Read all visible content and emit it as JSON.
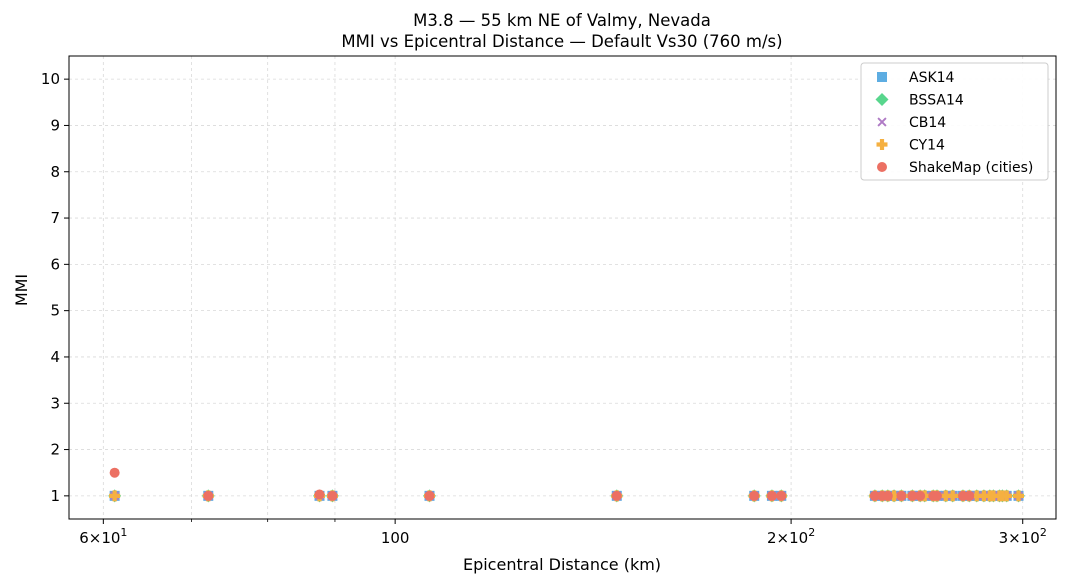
{
  "chart_data": {
    "type": "scatter",
    "title": "M3.8 — 55 km NE of Valmy, Nevada",
    "subtitle": "MMI vs Epicentral Distance — Default Vs30 (760 m/s)",
    "xlabel": "Epicentral Distance (km)",
    "ylabel": "MMI",
    "xscale": "log",
    "xlim": [
      56.5,
      318
    ],
    "ylim": [
      0.5,
      10.5
    ],
    "yticks": [
      1,
      2,
      3,
      4,
      5,
      6,
      7,
      8,
      9,
      10
    ],
    "ytick_labels": [
      "1",
      "2",
      "3",
      "4",
      "5",
      "6",
      "7",
      "8",
      "9",
      "10"
    ],
    "xticks_major": [
      {
        "value": 60,
        "base": "6",
        "mult": "×",
        "pow": "10",
        "exp": "1"
      },
      {
        "value": 100,
        "label": "100"
      },
      {
        "value": 200,
        "base": "2",
        "mult": "×",
        "pow": "10",
        "exp": "2"
      },
      {
        "value": 300,
        "base": "3",
        "mult": "×",
        "pow": "10",
        "exp": "2"
      }
    ],
    "xticks_minor": [
      70,
      80,
      90
    ],
    "xgrid_lines": [
      60,
      70,
      80,
      90,
      100,
      200,
      300
    ],
    "grid": true,
    "legend_position": "top-right",
    "series": [
      {
        "name": "ASK14",
        "marker": "square",
        "color": "#5dade2",
        "x": [
          61.2,
          72.1,
          87.6,
          89.6,
          106.2,
          147.4,
          187.5,
          193.4,
          196.6,
          231.6,
          234.6,
          236.9,
          239.5,
          242.6,
          247.3,
          250.7,
          252.7,
          256.5,
          258.2,
          262.2,
          265.4,
          270.2,
          273.2,
          276.8,
          280.3,
          283.2,
          285.0,
          288.0,
          289.5,
          291.7,
          297.8
        ],
        "y": [
          1,
          1,
          1,
          1,
          1,
          1,
          1,
          1,
          1,
          1,
          1,
          1,
          1,
          1,
          1,
          1,
          1,
          1,
          1,
          1,
          1,
          1,
          1,
          1,
          1,
          1,
          1,
          1,
          1,
          1,
          1
        ]
      },
      {
        "name": "BSSA14",
        "marker": "diamond",
        "color": "#58d68d",
        "x": [
          61.2,
          72.1,
          87.6,
          89.6,
          106.2,
          147.4,
          187.5,
          193.4,
          196.6,
          231.6,
          234.6,
          236.9,
          239.5,
          242.6,
          247.3,
          250.7,
          252.7,
          256.5,
          258.2,
          262.2,
          265.4,
          270.2,
          273.2,
          276.8,
          280.3,
          283.2,
          285.0,
          288.0,
          289.5,
          291.7,
          297.8
        ],
        "y": [
          1,
          1,
          1,
          1,
          1,
          1,
          1,
          1,
          1,
          1,
          1,
          1,
          1,
          1,
          1,
          1,
          1,
          1,
          1,
          1,
          1,
          1,
          1,
          1,
          1,
          1,
          1,
          1,
          1,
          1,
          1
        ]
      },
      {
        "name": "CB14",
        "marker": "x",
        "color": "#af7ac5",
        "x": [
          61.2,
          72.1,
          87.6,
          89.6,
          106.2,
          147.4,
          187.5,
          193.4,
          196.6,
          231.6,
          234.6,
          236.9,
          239.5,
          242.6,
          247.3,
          250.7,
          252.7,
          256.5,
          258.2,
          262.2,
          265.4,
          270.2,
          273.2,
          276.8,
          280.3,
          283.2,
          285.0,
          288.0,
          289.5,
          291.7,
          297.8
        ],
        "y": [
          1,
          1,
          1,
          1,
          1,
          1,
          1,
          1,
          1,
          1,
          1,
          1,
          1,
          1,
          1,
          1,
          1,
          1,
          1,
          1,
          1,
          1,
          1,
          1,
          1,
          1,
          1,
          1,
          1,
          1,
          1
        ]
      },
      {
        "name": "CY14",
        "marker": "plus",
        "color": "#f5b041",
        "x": [
          61.2,
          72.1,
          87.6,
          89.6,
          106.2,
          147.4,
          187.5,
          193.4,
          196.6,
          231.6,
          234.6,
          236.9,
          239.5,
          242.6,
          247.3,
          250.7,
          252.7,
          256.5,
          258.2,
          262.2,
          265.4,
          270.2,
          273.2,
          276.8,
          280.3,
          283.2,
          285.0,
          288.0,
          289.5,
          291.7,
          297.8
        ],
        "y": [
          1,
          1,
          1,
          1,
          1,
          1,
          1,
          1,
          1,
          1,
          1,
          1,
          1,
          1,
          1,
          1,
          1,
          1,
          1,
          1,
          1,
          1,
          1,
          1,
          1,
          1,
          1,
          1,
          1,
          1,
          1
        ]
      },
      {
        "name": "ShakeMap (cities)",
        "marker": "circle",
        "color": "#ec7063",
        "x": [
          61.2,
          72.1,
          87.6,
          89.6,
          106.2,
          147.4,
          187.5,
          193.4,
          196.6,
          231.6,
          234.6,
          236.9,
          242.6,
          247.3,
          250.7,
          256.5,
          258.2,
          270.2,
          273.2
        ],
        "y": [
          1.5,
          1,
          1.03,
          1,
          1,
          1,
          1,
          1,
          1,
          1,
          1,
          1,
          1,
          1,
          1,
          1,
          1,
          1,
          1
        ]
      }
    ]
  }
}
